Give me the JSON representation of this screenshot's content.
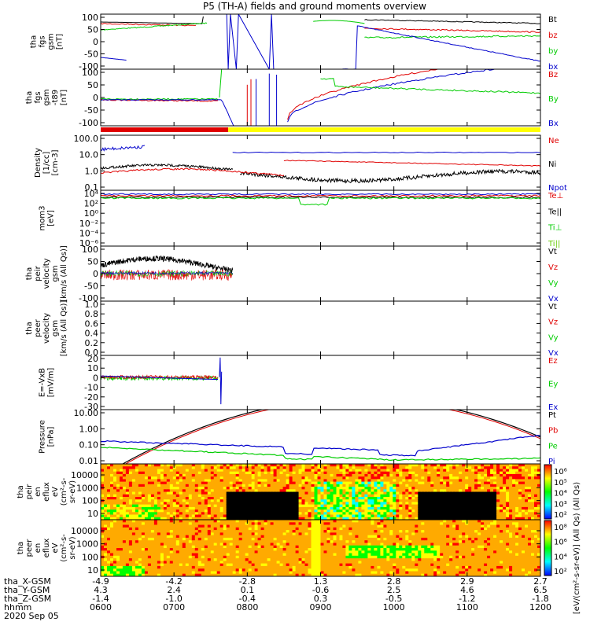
{
  "title": "P5 (TH-A) fields and ground moments overview",
  "date": "2020 Sep 05",
  "colors": {
    "black": "#000000",
    "red": "#e00000",
    "green": "#00cc00",
    "blue": "#0000cc",
    "yellow": "#ffff00"
  },
  "chart_data": [
    {
      "type": "line",
      "ylabel": [
        "tha",
        "fgs",
        "gsm",
        "[nT]"
      ],
      "ylim": [
        -100,
        100
      ],
      "yticks": [
        "100",
        "50",
        "0",
        "-50",
        "-100"
      ],
      "legend": [
        {
          "name": "Bt",
          "color": "#000000"
        },
        {
          "name": "bz",
          "color": "#e00000"
        },
        {
          "name": "by",
          "color": "#00cc00"
        },
        {
          "name": "bx",
          "color": "#0000cc"
        }
      ]
    },
    {
      "type": "line",
      "ylabel": [
        "tha",
        "fgs",
        "gsm",
        "-t89",
        "[nT]"
      ],
      "ylim": [
        -120,
        100
      ],
      "yticks": [
        "100",
        "50",
        "0",
        "-50",
        "-100"
      ],
      "legend": [
        {
          "name": "Bz",
          "color": "#e00000"
        },
        {
          "name": "By",
          "color": "#00cc00"
        },
        {
          "name": "Bx",
          "color": "#0000cc"
        }
      ]
    },
    {
      "type": "line",
      "ylabel": [
        "Density",
        "[1/cc]",
        "[cm-3]"
      ],
      "yscale": "log",
      "ylim": [
        0.01,
        1000
      ],
      "yticks": [
        "100.0",
        "10.0",
        "1.0",
        "0.1"
      ],
      "legend": [
        {
          "name": "Ne",
          "color": "#e00000"
        },
        {
          "name": "Ni",
          "color": "#000000"
        },
        {
          "name": "Npot",
          "color": "#0000cc"
        }
      ]
    },
    {
      "type": "line",
      "ylabel": [
        "mom3",
        "[eV]"
      ],
      "yscale": "log",
      "ylim": [
        1e-06,
        10000
      ],
      "yticks": [
        "10⁴",
        "10²",
        "10⁰",
        "10⁻²",
        "10⁻⁴",
        "10⁻⁶"
      ],
      "legend": [
        {
          "name": "Te⊥",
          "color": "#e00000"
        },
        {
          "name": "Te||",
          "color": "#000000"
        },
        {
          "name": "Ti⊥",
          "color": "#00cc00"
        },
        {
          "name": "Ti||",
          "color": "#66cc00"
        }
      ]
    },
    {
      "type": "line",
      "ylabel": [
        "tha",
        "peir",
        "velocity",
        "gsm",
        "[km/s (All Qs)]"
      ],
      "ylim": [
        -100,
        100
      ],
      "yticks": [
        "100",
        "50",
        "0",
        "-50",
        "-100"
      ],
      "legend": [
        {
          "name": "Vt",
          "color": "#000000"
        },
        {
          "name": "Vz",
          "color": "#e00000"
        },
        {
          "name": "Vy",
          "color": "#00cc00"
        },
        {
          "name": "Vx",
          "color": "#0000cc"
        }
      ]
    },
    {
      "type": "line",
      "ylabel": [
        "tha",
        "peer",
        "velocity",
        "gsm",
        "[km/s (All Qs)]"
      ],
      "ylim": [
        0,
        1
      ],
      "yticks": [
        "1.0",
        "0.8",
        "0.6",
        "0.4",
        "0.2",
        "0.0"
      ],
      "legend": [
        {
          "name": "Vt",
          "color": "#000000"
        },
        {
          "name": "Vz",
          "color": "#e00000"
        },
        {
          "name": "Vy",
          "color": "#00cc00"
        },
        {
          "name": "Vx",
          "color": "#0000cc"
        }
      ]
    },
    {
      "type": "line",
      "ylabel": [
        "E=-VxB",
        "[mV/m]"
      ],
      "ylim": [
        -30,
        20
      ],
      "yticks": [
        "20",
        "10",
        "0",
        "-10",
        "-20",
        "-30"
      ],
      "legend": [
        {
          "name": "Ez",
          "color": "#e00000"
        },
        {
          "name": "Ey",
          "color": "#00cc00"
        },
        {
          "name": "Ex",
          "color": "#0000cc"
        }
      ]
    },
    {
      "type": "line",
      "ylabel": [
        "Pressure",
        "[nPa]"
      ],
      "yscale": "log",
      "ylim": [
        0.005,
        30
      ],
      "yticks": [
        "10.00",
        "1.00",
        "0.10",
        "0.01"
      ],
      "legend": [
        {
          "name": "Pt",
          "color": "#000000"
        },
        {
          "name": "Pb",
          "color": "#e00000"
        },
        {
          "name": "Pe",
          "color": "#00cc00"
        },
        {
          "name": "Pi",
          "color": "#0000cc"
        }
      ]
    },
    {
      "type": "heatmap",
      "ylabel": [
        "tha",
        "peir",
        "en",
        "eflux",
        "eV",
        "(cm²-s-",
        "sr-eV)"
      ],
      "yscale": "log",
      "yticks": [
        "10000",
        "1000",
        "100",
        "10"
      ],
      "colorbar_ticks": [
        "10⁶",
        "10⁵",
        "10⁴",
        "10³",
        "10²"
      ]
    },
    {
      "type": "heatmap",
      "ylabel": [
        "tha",
        "peer",
        "en",
        "eflux",
        "eV",
        "(cm²-s-",
        "sr-eV)"
      ],
      "yscale": "log",
      "yticks": [
        "10000",
        "1000",
        "100",
        "10"
      ],
      "colorbar_ticks": [
        "10⁸",
        "10⁶",
        "10⁴",
        "10²"
      ]
    }
  ],
  "colorbar_label": "[eV/(cm²-s-sr-eV)] (All Qs) (All Qs)",
  "x_axis": {
    "row_labels": [
      "tha_X-GSM",
      "tha_Y-GSM",
      "tha_Z-GSM",
      "hhmm"
    ],
    "columns": [
      {
        "x": "-4.9",
        "y": "4.3",
        "z": "-1.4",
        "hhmm": "0600"
      },
      {
        "x": "-4.2",
        "y": "2.4",
        "z": "-1.0",
        "hhmm": "0700"
      },
      {
        "x": "-2.8",
        "y": "0.1",
        "z": "-0.4",
        "hhmm": "0800"
      },
      {
        "x": "1.3",
        "y": "-0.6",
        "z": "0.3",
        "hhmm": "0900"
      },
      {
        "x": "2.8",
        "y": "2.5",
        "z": "-0.5",
        "hhmm": "1000"
      },
      {
        "x": "2.9",
        "y": "4.6",
        "z": "-1.2",
        "hhmm": "1100"
      },
      {
        "x": "2.7",
        "y": "6.5",
        "z": "-1.8",
        "hhmm": "1200"
      }
    ]
  },
  "mode_bar": {
    "red_until_hhmm": "0744",
    "yellow_after_hhmm": "0744"
  }
}
